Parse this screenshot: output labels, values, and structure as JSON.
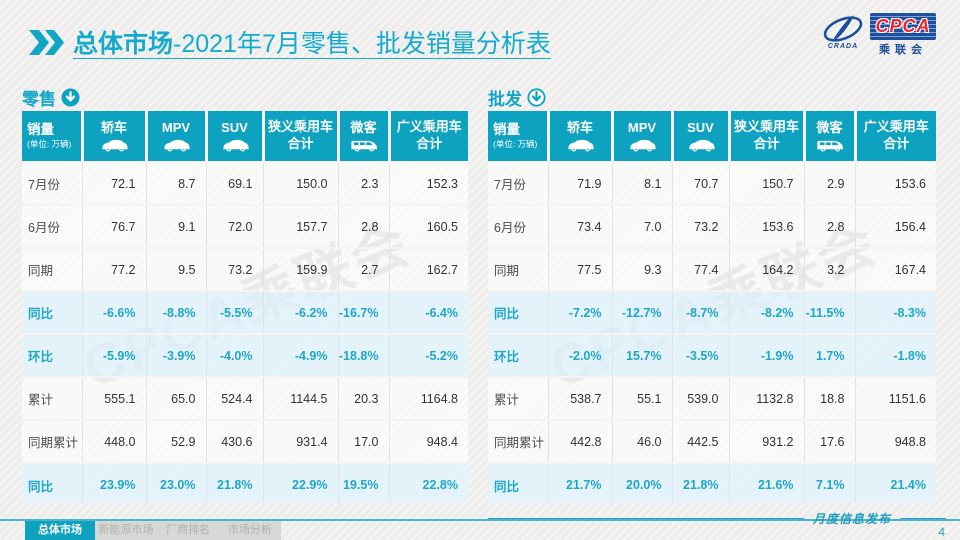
{
  "page": {
    "title_bold": "总体市场",
    "title_rest": "-2021年7月零售、批发销量分析表",
    "watermark": "CPCA乘联会",
    "footer_note": "月度信息发布",
    "page_number": "4"
  },
  "logo": {
    "cpca": "CPCA",
    "crada": "CRADA",
    "assoc": "乘联会"
  },
  "colors": {
    "accent_teal": "#0ea2c1",
    "title_teal": "#14abcd",
    "percent_text": "#1fa6c9",
    "row_highlight": "#e3f3fa",
    "logo_blue": "#1c4f9e",
    "cpca_red": "#e8262d"
  },
  "chart_data": [
    {
      "type": "table",
      "name": "零售",
      "unit_label": "销量",
      "unit_note": "(单位: 万辆)",
      "columns": [
        {
          "label": "轿车",
          "icon": "car-icon"
        },
        {
          "label": "MPV",
          "icon": "car-icon"
        },
        {
          "label": "SUV",
          "icon": "car-icon"
        },
        {
          "label": "狭义乘用车",
          "label2": "合计"
        },
        {
          "label": "微客",
          "icon": "van-icon"
        },
        {
          "label": "广义乘用车",
          "label2": "合计"
        }
      ],
      "rows": [
        {
          "label": "7月份",
          "type": "norm",
          "values": [
            "72.1",
            "8.7",
            "69.1",
            "150.0",
            "2.3",
            "152.3"
          ]
        },
        {
          "label": "6月份",
          "type": "norm",
          "values": [
            "76.7",
            "9.1",
            "72.0",
            "157.7",
            "2.8",
            "160.5"
          ]
        },
        {
          "label": "同期",
          "type": "norm",
          "values": [
            "77.2",
            "9.5",
            "73.2",
            "159.9",
            "2.7",
            "162.7"
          ]
        },
        {
          "label": "同比",
          "type": "pct",
          "values": [
            "-6.6%",
            "-8.8%",
            "-5.5%",
            "-6.2%",
            "-16.7%",
            "-6.4%"
          ]
        },
        {
          "label": "环比",
          "type": "pct",
          "values": [
            "-5.9%",
            "-3.9%",
            "-4.0%",
            "-4.9%",
            "-18.8%",
            "-5.2%"
          ]
        },
        {
          "label": "累计",
          "type": "norm",
          "values": [
            "555.1",
            "65.0",
            "524.4",
            "1144.5",
            "20.3",
            "1164.8"
          ]
        },
        {
          "label": "同期累计",
          "type": "norm",
          "values": [
            "448.0",
            "52.9",
            "430.6",
            "931.4",
            "17.0",
            "948.4"
          ]
        },
        {
          "label": "同比",
          "type": "pct",
          "values": [
            "23.9%",
            "23.0%",
            "21.8%",
            "22.9%",
            "19.5%",
            "22.8%"
          ]
        }
      ]
    },
    {
      "type": "table",
      "name": "批发",
      "unit_label": "销量",
      "unit_note": "(单位: 万辆)",
      "columns": [
        {
          "label": "轿车",
          "icon": "car-icon"
        },
        {
          "label": "MPV",
          "icon": "car-icon"
        },
        {
          "label": "SUV",
          "icon": "car-icon"
        },
        {
          "label": "狭义乘用车",
          "label2": "合计"
        },
        {
          "label": "微客",
          "icon": "van-icon"
        },
        {
          "label": "广义乘用车",
          "label2": "合计"
        }
      ],
      "rows": [
        {
          "label": "7月份",
          "type": "norm",
          "values": [
            "71.9",
            "8.1",
            "70.7",
            "150.7",
            "2.9",
            "153.6"
          ]
        },
        {
          "label": "6月份",
          "type": "norm",
          "values": [
            "73.4",
            "7.0",
            "73.2",
            "153.6",
            "2.8",
            "156.4"
          ]
        },
        {
          "label": "同期",
          "type": "norm",
          "values": [
            "77.5",
            "9.3",
            "77.4",
            "164.2",
            "3.2",
            "167.4"
          ]
        },
        {
          "label": "同比",
          "type": "pct",
          "values": [
            "-7.2%",
            "-12.7%",
            "-8.7%",
            "-8.2%",
            "-11.5%",
            "-8.3%"
          ]
        },
        {
          "label": "环比",
          "type": "pct",
          "values": [
            "-2.0%",
            "15.7%",
            "-3.5%",
            "-1.9%",
            "1.7%",
            "-1.8%"
          ]
        },
        {
          "label": "累计",
          "type": "norm",
          "values": [
            "538.7",
            "55.1",
            "539.0",
            "1132.8",
            "18.8",
            "1151.6"
          ]
        },
        {
          "label": "同期累计",
          "type": "norm",
          "values": [
            "442.8",
            "46.0",
            "442.5",
            "931.2",
            "17.6",
            "948.8"
          ]
        },
        {
          "label": "同比",
          "type": "pct",
          "values": [
            "21.7%",
            "20.0%",
            "21.8%",
            "21.6%",
            "7.1%",
            "21.4%"
          ]
        }
      ]
    }
  ],
  "footer_tabs": [
    {
      "label": "总体市场",
      "active": true
    },
    {
      "label": "新能源市场",
      "active": false
    },
    {
      "label": "厂商排名",
      "active": false
    },
    {
      "label": "市场分析",
      "active": false
    }
  ]
}
